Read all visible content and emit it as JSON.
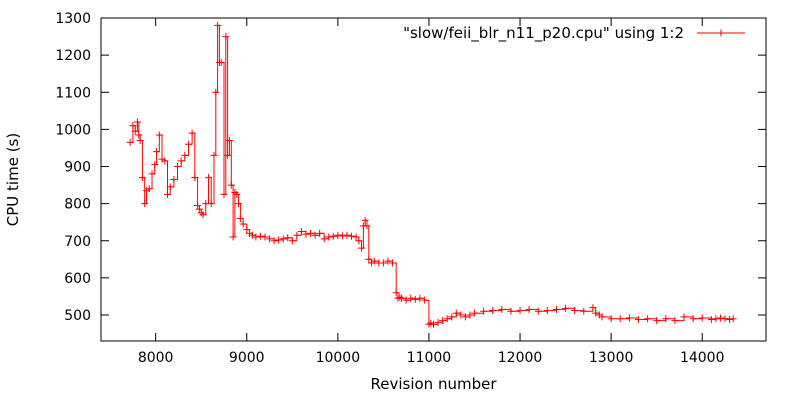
{
  "chart_data": {
    "type": "line",
    "title": "",
    "xlabel": "Revision number",
    "ylabel": "CPU time (s)",
    "xlim": [
      7400,
      14700
    ],
    "ylim": [
      430,
      1300
    ],
    "xticks": [
      8000,
      9000,
      10000,
      11000,
      12000,
      13000,
      14000
    ],
    "yticks": [
      500,
      600,
      700,
      800,
      900,
      1000,
      1100,
      1200,
      1300
    ],
    "grid": false,
    "legend_position": "top-right",
    "line_style": "steps-with-cross-markers",
    "series": [
      {
        "name": "\"slow/feii_blr_n11_p20.cpu\" using 1:2",
        "color": "#ff0000",
        "x": [
          7720,
          7750,
          7775,
          7800,
          7815,
          7830,
          7855,
          7880,
          7900,
          7930,
          7960,
          7990,
          8010,
          8040,
          8070,
          8100,
          8130,
          8160,
          8200,
          8240,
          8280,
          8320,
          8360,
          8400,
          8430,
          8460,
          8480,
          8500,
          8520,
          8550,
          8580,
          8610,
          8640,
          8660,
          8680,
          8700,
          8720,
          8750,
          8770,
          8790,
          8810,
          8830,
          8850,
          8870,
          8890,
          8910,
          8930,
          8960,
          9000,
          9030,
          9060,
          9100,
          9150,
          9200,
          9250,
          9300,
          9350,
          9400,
          9450,
          9500,
          9550,
          9600,
          9650,
          9700,
          9750,
          9800,
          9850,
          9900,
          9950,
          10000,
          10050,
          10100,
          10150,
          10200,
          10230,
          10260,
          10280,
          10300,
          10320,
          10340,
          10370,
          10400,
          10450,
          10500,
          10550,
          10600,
          10640,
          10660,
          10680,
          10700,
          10750,
          10800,
          10850,
          10900,
          10950,
          11000,
          11020,
          11050,
          11100,
          11150,
          11200,
          11250,
          11300,
          11350,
          11400,
          11450,
          11500,
          11600,
          11700,
          11800,
          11900,
          12000,
          12100,
          12200,
          12300,
          12400,
          12500,
          12600,
          12700,
          12800,
          12830,
          12870,
          12900,
          13000,
          13100,
          13200,
          13300,
          13400,
          13500,
          13600,
          13700,
          13800,
          13900,
          14000,
          14100,
          14150,
          14200,
          14250,
          14300,
          14340
        ],
        "y": [
          965,
          1010,
          995,
          1020,
          985,
          970,
          870,
          800,
          835,
          840,
          880,
          905,
          940,
          985,
          920,
          915,
          825,
          845,
          865,
          900,
          915,
          930,
          960,
          990,
          870,
          795,
          785,
          775,
          770,
          800,
          870,
          800,
          930,
          1100,
          1280,
          1180,
          1180,
          825,
          1250,
          930,
          970,
          850,
          710,
          830,
          825,
          800,
          760,
          745,
          730,
          720,
          715,
          710,
          712,
          710,
          705,
          700,
          702,
          705,
          708,
          700,
          715,
          725,
          718,
          720,
          715,
          720,
          705,
          710,
          712,
          715,
          713,
          715,
          712,
          710,
          700,
          680,
          740,
          755,
          740,
          650,
          640,
          645,
          640,
          640,
          645,
          640,
          560,
          545,
          548,
          545,
          540,
          545,
          542,
          545,
          540,
          475,
          478,
          475,
          480,
          485,
          490,
          495,
          505,
          500,
          495,
          500,
          505,
          510,
          512,
          515,
          510,
          512,
          515,
          510,
          512,
          515,
          518,
          512,
          510,
          520,
          505,
          500,
          495,
          490,
          490,
          492,
          488,
          490,
          485,
          490,
          485,
          495,
          490,
          492,
          488,
          490,
          492,
          490,
          488,
          490
        ]
      }
    ]
  }
}
